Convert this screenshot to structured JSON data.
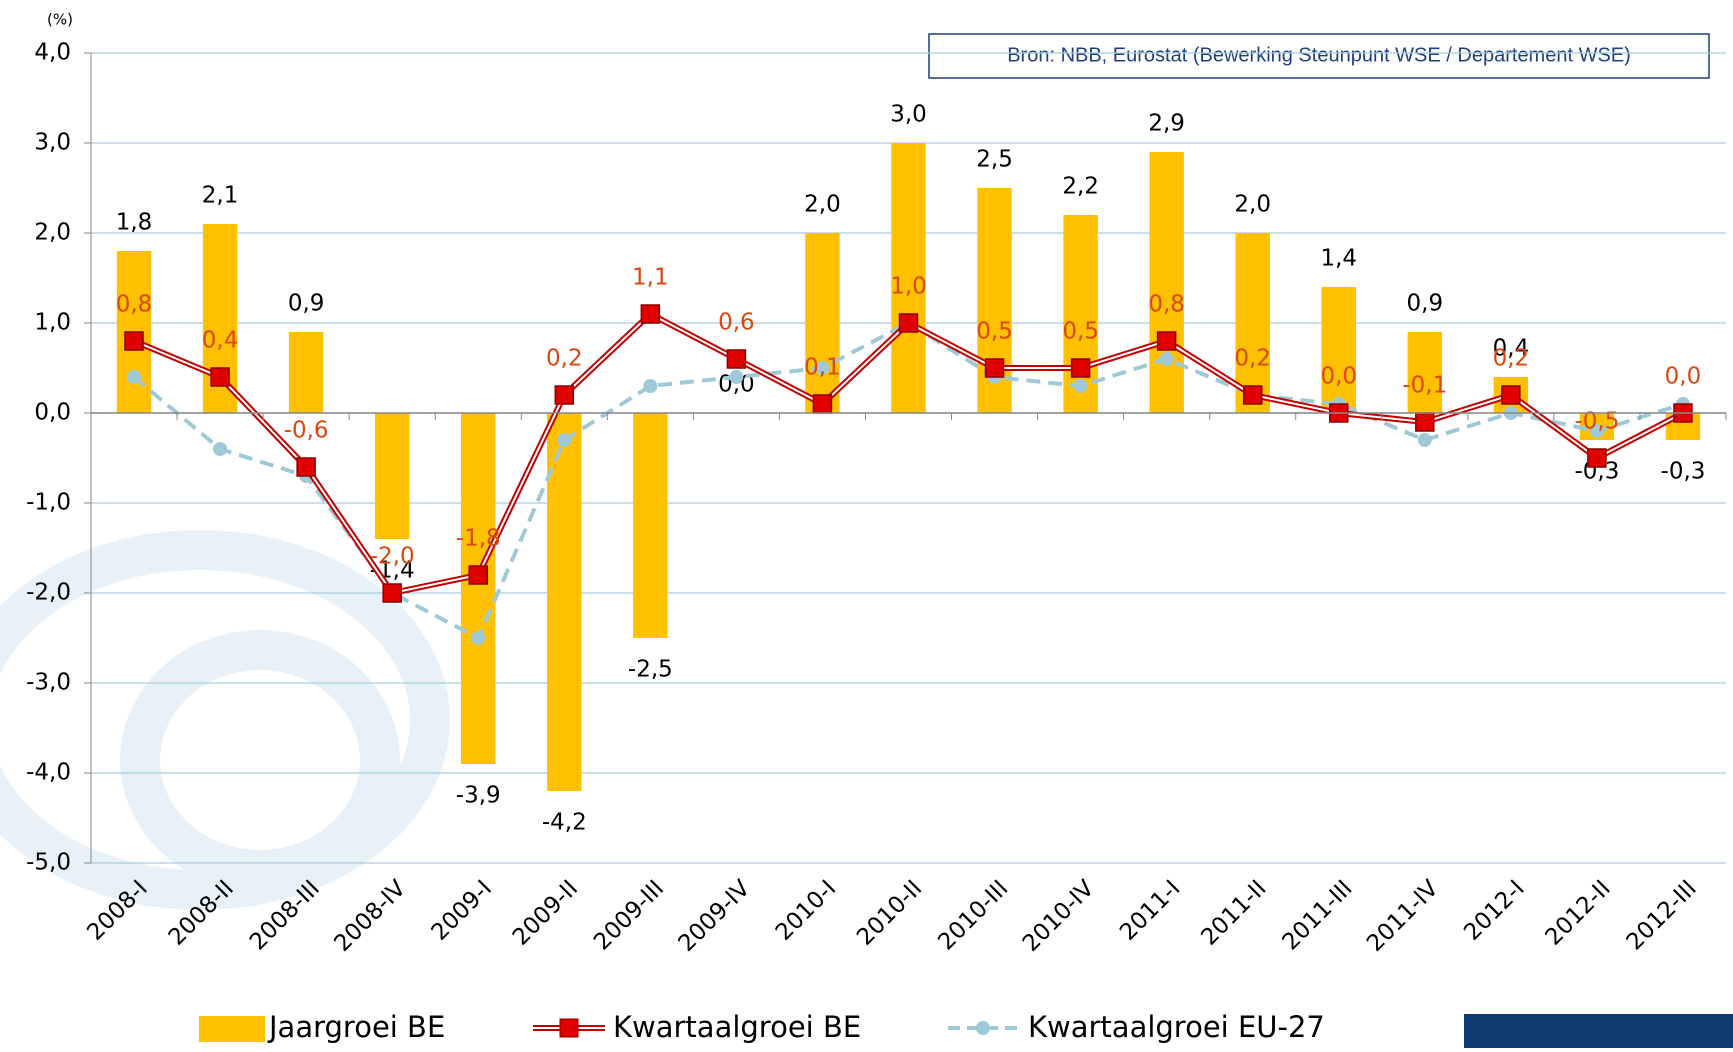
{
  "chart_data": {
    "type": "bar_line",
    "unit_label": "(%)",
    "source": "Bron: NBB, Eurostat (Bewerking Steunpunt WSE / Departement WSE)",
    "categories": [
      "2008-I",
      "2008-II",
      "2008-III",
      "2008-IV",
      "2009-I",
      "2009-II",
      "2009-III",
      "2009-IV",
      "2010-I",
      "2010-II",
      "2010-III",
      "2010-IV",
      "2011-I",
      "2011-II",
      "2011-III",
      "2011-IV",
      "2012-I",
      "2012-II",
      "2012-III"
    ],
    "series": [
      {
        "name": "Jaargroei BE",
        "type": "bar",
        "color": "#ffc000",
        "label_color": "#000000",
        "values": [
          1.8,
          2.1,
          0.9,
          -1.4,
          -3.9,
          -4.2,
          -2.5,
          0.0,
          2.0,
          3.0,
          2.5,
          2.2,
          2.9,
          2.0,
          1.4,
          0.9,
          0.4,
          -0.3,
          -0.3
        ],
        "value_labels": [
          "1,8",
          "2,1",
          "0,9",
          "-1,4",
          "-3,9",
          "-4,2",
          "-2,5",
          "0,0",
          "2,0",
          "3,0",
          "2,5",
          "2,2",
          "2,9",
          "2,0",
          "1,4",
          "0,9",
          "0,4",
          "-0,3",
          "-0,3"
        ]
      },
      {
        "name": "Kwartaalgroei BE",
        "type": "line",
        "color": "#c00000",
        "label_color": "#d9480f",
        "values": [
          0.8,
          0.4,
          -0.6,
          -2.0,
          -1.8,
          0.2,
          1.1,
          0.6,
          0.1,
          1.0,
          0.5,
          0.5,
          0.8,
          0.2,
          0.0,
          -0.1,
          0.2,
          -0.5,
          0.0
        ],
        "value_labels": [
          "0,8",
          "0,4",
          "-0,6",
          "-2,0",
          "-1,8",
          "0,2",
          "1,1",
          "0,6",
          "0,1",
          "1,0",
          "0,5",
          "0,5",
          "0,8",
          "0,2",
          "0,0",
          "-0,1",
          "0,2",
          "-0,5",
          "0,0"
        ]
      },
      {
        "name": "Kwartaalgroei EU-27",
        "type": "dashed-line",
        "color": "#9fc9d6",
        "values": [
          0.4,
          -0.4,
          -0.7,
          -2.0,
          -2.5,
          -0.3,
          0.3,
          0.4,
          0.5,
          1.0,
          0.4,
          0.3,
          0.6,
          0.2,
          0.1,
          -0.3,
          0.0,
          -0.2,
          0.1
        ]
      }
    ],
    "ylim": [
      -5,
      4
    ],
    "yticks": [
      {
        "value": -5,
        "label": "-5,0"
      },
      {
        "value": -4,
        "label": "-4,0"
      },
      {
        "value": -3,
        "label": "-3,0"
      },
      {
        "value": -2,
        "label": "-2,0"
      },
      {
        "value": -1,
        "label": "-1,0"
      },
      {
        "value": 0,
        "label": "0,0"
      },
      {
        "value": 1,
        "label": "1,0"
      },
      {
        "value": 2,
        "label": "2,0"
      },
      {
        "value": 3,
        "label": "3,0"
      },
      {
        "value": 4,
        "label": "4,0"
      }
    ],
    "grid": true,
    "legend": "bottom"
  }
}
